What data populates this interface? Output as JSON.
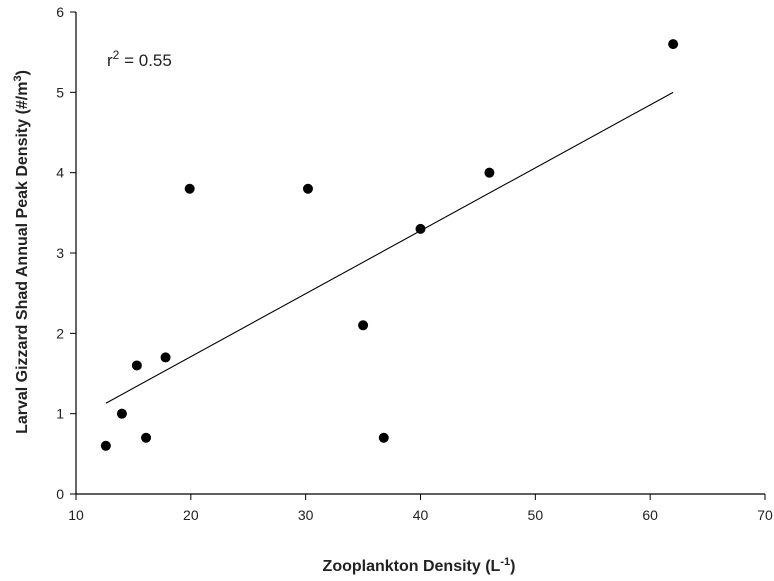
{
  "chart_data": {
    "type": "scatter",
    "title": "",
    "xlabel": "Zooplankton Density (L",
    "xlabel_sup": "-1",
    "xlabel_end": ")",
    "ylabel": "Larval Gizzard Shad Annual Peak Density (#/m",
    "ylabel_sup": "3",
    "ylabel_end": ")",
    "xlim": [
      10,
      70
    ],
    "ylim": [
      0,
      6
    ],
    "xticks": [
      10,
      20,
      30,
      40,
      50,
      60,
      70
    ],
    "yticks": [
      0,
      1,
      2,
      3,
      4,
      5,
      6
    ],
    "grid": false,
    "points": [
      {
        "x": 12.6,
        "y": 0.6
      },
      {
        "x": 14.0,
        "y": 1.0
      },
      {
        "x": 15.3,
        "y": 1.6
      },
      {
        "x": 16.1,
        "y": 0.7
      },
      {
        "x": 17.8,
        "y": 1.7
      },
      {
        "x": 19.9,
        "y": 3.8
      },
      {
        "x": 30.2,
        "y": 3.8
      },
      {
        "x": 35.0,
        "y": 2.1
      },
      {
        "x": 36.8,
        "y": 0.7
      },
      {
        "x": 40.0,
        "y": 3.3
      },
      {
        "x": 46.0,
        "y": 4.0
      },
      {
        "x": 62.0,
        "y": 5.6
      }
    ],
    "trendline": {
      "x": [
        12.6,
        62.0
      ],
      "y": [
        1.13,
        5.0
      ]
    },
    "annotation": {
      "base": "r",
      "sup": "2",
      "rest": " = 0.55"
    }
  }
}
